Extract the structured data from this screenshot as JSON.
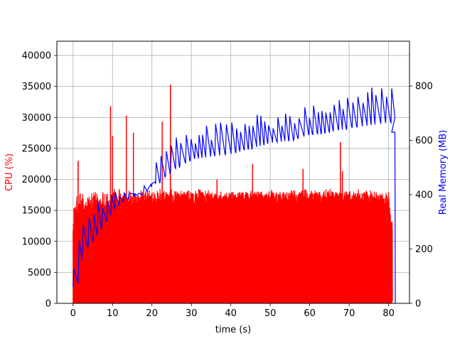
{
  "chart_data": {
    "type": "line",
    "xlabel": "time (s)",
    "ylabel_left": "CPU (%)",
    "ylabel_right": "Real Memory (MB)",
    "xlim": [
      -4.1,
      85.3
    ],
    "ylim_left": [
      0,
      42300
    ],
    "ylim_right": [
      0,
      965
    ],
    "grid": true,
    "x_ticks": [
      0,
      10,
      20,
      30,
      40,
      50,
      60,
      70,
      80
    ],
    "y_left_ticks": [
      0,
      5000,
      10000,
      15000,
      20000,
      25000,
      30000,
      35000,
      40000
    ],
    "y_right_ticks": [
      0,
      200,
      400,
      600,
      800
    ],
    "colors": {
      "cpu": "#ff0000",
      "memory": "#0000ff",
      "grid": "#b0b0b0"
    },
    "series": [
      {
        "name": "CPU (%)",
        "axis": "left",
        "color": "#ff0000",
        "envelope": {
          "x": [
            0,
            0.3,
            1,
            2,
            3,
            4,
            5,
            6,
            8,
            10,
            12,
            14,
            16,
            18,
            20,
            22,
            24,
            25,
            30,
            35,
            40,
            45,
            50,
            55,
            60,
            65,
            70,
            75,
            80,
            81
          ],
          "high": [
            15000,
            17500,
            18000,
            18500,
            18500,
            18000,
            18000,
            18500,
            18500,
            18500,
            18500,
            18500,
            18500,
            18500,
            18500,
            18500,
            18500,
            18500,
            18500,
            18500,
            18500,
            18500,
            18500,
            18500,
            18500,
            18500,
            18500,
            18500,
            18000,
            14000
          ],
          "low": [
            0,
            0,
            500,
            1000,
            1500,
            2500,
            3500,
            4500,
            6500,
            8500,
            10000,
            11000,
            12000,
            13000,
            13500,
            14000,
            14500,
            15000,
            15000,
            15000,
            15000,
            15000,
            15000,
            15000,
            15000,
            15000,
            15000,
            15000,
            14500,
            0
          ]
        },
        "spikes": [
          {
            "x": 1.3,
            "y": 23000
          },
          {
            "x": 9.5,
            "y": 31800
          },
          {
            "x": 10.0,
            "y": 27000
          },
          {
            "x": 13.5,
            "y": 30300
          },
          {
            "x": 15.3,
            "y": 27500
          },
          {
            "x": 22.6,
            "y": 29300
          },
          {
            "x": 24.7,
            "y": 35300
          },
          {
            "x": 36.5,
            "y": 20000
          },
          {
            "x": 45.5,
            "y": 22500
          },
          {
            "x": 58.3,
            "y": 21700
          },
          {
            "x": 67.8,
            "y": 26000
          },
          {
            "x": 68.3,
            "y": 21300
          }
        ]
      },
      {
        "name": "Real Memory (MB)",
        "axis": "right",
        "color": "#0000ff",
        "baseline": {
          "x": [
            0,
            2,
            4,
            6,
            8,
            10,
            12,
            15,
            18,
            20,
            22,
            25,
            28,
            30,
            35,
            40,
            45,
            50,
            55,
            60,
            65,
            70,
            75,
            80
          ],
          "y": [
            60,
            180,
            220,
            260,
            300,
            340,
            370,
            390,
            410,
            430,
            450,
            490,
            510,
            530,
            540,
            550,
            570,
            590,
            600,
            620,
            630,
            645,
            655,
            665
          ]
        },
        "peaks": {
          "x": [
            0,
            2,
            4,
            6,
            8,
            10,
            12,
            15,
            18,
            20,
            22,
            25,
            28,
            30,
            35,
            40,
            45,
            50,
            55,
            60,
            65,
            70,
            75,
            80
          ],
          "y": [
            140,
            300,
            340,
            380,
            420,
            430,
            420,
            440,
            470,
            490,
            570,
            610,
            620,
            640,
            660,
            680,
            700,
            700,
            720,
            730,
            760,
            780,
            800,
            810
          ]
        },
        "tail": [
          {
            "x": 80.8,
            "y": 630
          },
          {
            "x": 81.6,
            "y": 630
          },
          {
            "x": 81.7,
            "y": 0
          }
        ]
      }
    ]
  }
}
